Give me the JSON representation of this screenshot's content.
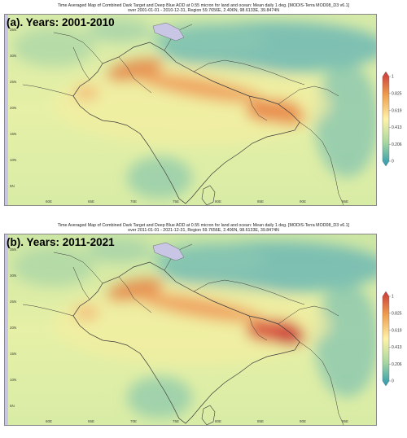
{
  "panels": [
    {
      "id": "a",
      "label_letter": "(a).",
      "label_text": " Years: 2001-2010",
      "title_line1": "Time Averaged Map of Combined Dark Target and Deep Blue AOD at 0.55 micron for land and ocean: Mean daily 1 deg. [MODIS-Terra MOD08_D3 v6.1]",
      "title_line2": "over 2001-01-01 - 2010-12-31, Region 59.7656E, 2.406N, 98.6133E, 39.8474N"
    },
    {
      "id": "b",
      "label_letter": "(b).",
      "label_text": " Years: 2011-2021",
      "title_line1": "Time Averaged Map of Combined Dark Target and Deep Blue AOD at 0.55 micron for land and ocean: Mean daily 1 deg. [MODIS-Terra MOD08_D3 v6.1]",
      "title_line2": "over 2011-01-01 - 2021-12-31, Region 59.7656E, 2.406N, 98.6133E, 39.8474N"
    }
  ],
  "colorbar": {
    "ticks": [
      "1",
      "0.825",
      "0.619",
      "0.413",
      "0.206",
      "0"
    ],
    "colors": [
      "#c9383a",
      "#f0a050",
      "#fff2a8",
      "#a8d8a0",
      "#2a98b0"
    ]
  },
  "lat_labels": [
    "35N",
    "30N",
    "25N",
    "20N",
    "15N",
    "10N",
    "5N"
  ],
  "lon_labels": [
    "60E",
    "65E",
    "70E",
    "75E",
    "80E",
    "85E",
    "90E",
    "95E"
  ]
}
